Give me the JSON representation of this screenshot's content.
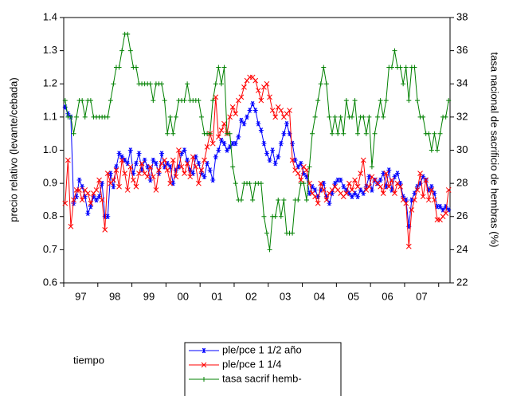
{
  "chart_data": {
    "type": "line",
    "x_label": "tiempo",
    "y_label": "precio relativo (levante/cebada)",
    "y2_label": "tasa nacional de sacrificio de hembras (%)",
    "categories": [
      null,
      null,
      null,
      null,
      null,
      null,
      "97",
      null,
      null,
      null,
      null,
      null,
      null,
      null,
      null,
      null,
      null,
      null,
      "98",
      null,
      null,
      null,
      null,
      null,
      null,
      null,
      null,
      null,
      null,
      null,
      "99",
      null,
      null,
      null,
      null,
      null,
      null,
      null,
      null,
      null,
      null,
      null,
      "00",
      null,
      null,
      null,
      null,
      null,
      null,
      null,
      null,
      null,
      null,
      null,
      "01",
      null,
      null,
      null,
      null,
      null,
      null,
      null,
      null,
      null,
      null,
      null,
      "02",
      null,
      null,
      null,
      null,
      null,
      null,
      null,
      null,
      null,
      null,
      null,
      "03",
      null,
      null,
      null,
      null,
      null,
      null,
      null,
      null,
      null,
      null,
      null,
      "04",
      null,
      null,
      null,
      null,
      null,
      null,
      null,
      null,
      null,
      null,
      null,
      "05",
      null,
      null,
      null,
      null,
      null,
      null,
      null,
      null,
      null,
      null,
      null,
      "06",
      null,
      null,
      null,
      null,
      null,
      null,
      null,
      null,
      null,
      null,
      null,
      "07",
      null,
      null,
      null,
      null,
      null,
      null,
      null,
      null,
      null
    ],
    "ylim": [
      0.6,
      1.4
    ],
    "yticks": [
      0.6,
      0.7,
      0.8,
      0.9,
      {
        "value": 1,
        "label": "1.0"
      },
      1.1,
      1.2,
      1.3,
      1.4
    ],
    "y2lim": [
      22,
      38
    ],
    "y2ticks": [
      22,
      24,
      26,
      28,
      30,
      32,
      34,
      36,
      38
    ],
    "series": [
      {
        "name": "ple/pce 1 1/2 año",
        "color": "#0000ff",
        "marker": "asterisk",
        "values": [
          1.13,
          1.11,
          1.1,
          0.84,
          0.86,
          0.91,
          0.89,
          0.86,
          0.81,
          0.83,
          0.86,
          0.85,
          0.86,
          0.9,
          0.8,
          0.8,
          0.93,
          0.89,
          0.95,
          0.99,
          0.98,
          0.97,
          0.96,
          1.0,
          0.93,
          0.96,
          0.99,
          0.94,
          0.97,
          0.95,
          0.91,
          0.97,
          0.96,
          0.93,
          0.99,
          0.95,
          0.96,
          0.95,
          0.9,
          0.94,
          0.95,
          0.99,
          1.0,
          0.97,
          0.94,
          0.93,
          0.98,
          0.96,
          0.93,
          0.92,
          0.96,
          0.94,
          0.91,
          0.98,
          1.0,
          1.03,
          1.02,
          1.0,
          1.01,
          1.02,
          1.02,
          1.04,
          1.09,
          1.08,
          1.1,
          1.12,
          1.14,
          1.12,
          1.08,
          1.06,
          1.02,
          0.99,
          0.97,
          1.0,
          0.96,
          0.98,
          1.02,
          1.05,
          1.08,
          1.05,
          1.02,
          0.97,
          0.95,
          0.96,
          0.93,
          0.92,
          0.87,
          0.89,
          0.88,
          0.86,
          0.88,
          0.9,
          0.86,
          0.84,
          0.87,
          0.9,
          0.91,
          0.91,
          0.89,
          0.88,
          0.87,
          0.86,
          0.87,
          0.86,
          0.88,
          0.87,
          0.89,
          0.92,
          0.88,
          0.91,
          0.9,
          0.91,
          0.93,
          0.89,
          0.94,
          0.88,
          0.92,
          0.93,
          0.9,
          0.86,
          0.85,
          0.77,
          0.85,
          0.87,
          0.89,
          0.9,
          0.92,
          0.91,
          0.88,
          0.89,
          0.87,
          0.83,
          0.83,
          0.82,
          0.83,
          0.82
        ]
      },
      {
        "name": "ple/pce 1 1/4",
        "color": "#ff0000",
        "marker": "x",
        "values": [
          0.84,
          0.97,
          0.77,
          0.85,
          0.88,
          0.88,
          0.85,
          0.88,
          0.87,
          0.84,
          0.87,
          0.88,
          0.91,
          0.85,
          0.76,
          0.93,
          0.9,
          0.91,
          0.94,
          0.89,
          0.97,
          0.93,
          0.88,
          0.95,
          0.91,
          0.89,
          0.93,
          0.96,
          0.93,
          0.92,
          0.95,
          0.92,
          0.88,
          0.94,
          0.96,
          0.97,
          0.94,
          0.9,
          0.97,
          0.92,
          1.0,
          0.95,
          0.93,
          0.96,
          0.92,
          0.98,
          0.95,
          0.9,
          0.94,
          0.97,
          1.01,
          1.05,
          1.02,
          1.16,
          1.04,
          1.06,
          1.08,
          1.05,
          1.1,
          1.13,
          1.11,
          1.15,
          1.16,
          1.19,
          1.21,
          1.22,
          1.22,
          1.21,
          1.18,
          1.15,
          1.19,
          1.2,
          1.16,
          1.12,
          1.1,
          1.13,
          1.12,
          1.1,
          1.11,
          1.12,
          0.97,
          0.94,
          0.93,
          0.91,
          0.95,
          0.94,
          0.9,
          0.87,
          0.86,
          0.84,
          0.9,
          0.88,
          0.85,
          0.87,
          0.88,
          0.89,
          0.88,
          0.87,
          0.86,
          0.87,
          0.9,
          0.88,
          0.91,
          0.89,
          0.93,
          0.97,
          0.88,
          0.89,
          0.92,
          0.91,
          0.9,
          0.89,
          0.87,
          0.93,
          0.89,
          0.91,
          0.87,
          0.9,
          0.89,
          0.85,
          0.84,
          0.71,
          0.82,
          0.85,
          0.88,
          0.93,
          0.86,
          0.91,
          0.85,
          0.88,
          0.85,
          0.79,
          0.79,
          0.8,
          0.81,
          0.88
        ]
      },
      {
        "name": "tasa sacrif hemb-",
        "color": "#008000",
        "marker": "plus",
        "axis": "y2",
        "values": [
          33,
          32,
          32,
          31,
          32,
          33,
          33,
          32,
          33,
          33,
          32,
          32,
          32,
          32,
          32,
          32,
          33,
          34,
          35,
          35,
          36,
          37,
          37,
          36,
          35,
          35,
          34,
          34,
          34,
          34,
          34,
          33,
          34,
          34,
          34,
          33,
          31,
          32,
          31,
          32,
          33,
          33,
          33,
          34,
          33,
          33,
          33,
          33,
          32,
          31,
          31,
          31,
          33,
          34,
          35,
          34,
          35,
          31,
          31,
          29,
          28,
          27,
          27,
          28,
          28,
          28,
          27,
          28,
          28,
          28,
          26,
          25,
          24,
          26,
          26,
          27,
          26,
          27,
          25,
          25,
          25,
          27,
          27,
          28,
          28,
          27,
          29,
          31,
          32,
          33,
          34,
          35,
          34,
          32,
          31,
          32,
          31,
          32,
          31,
          33,
          32,
          32,
          33,
          31,
          32,
          32,
          31,
          32,
          29,
          31,
          32,
          33,
          32,
          33,
          35,
          35,
          36,
          35,
          35,
          34,
          35,
          33,
          35,
          35,
          33,
          32,
          32,
          31,
          31,
          30,
          31,
          30,
          31,
          32,
          32,
          33
        ]
      }
    ]
  }
}
